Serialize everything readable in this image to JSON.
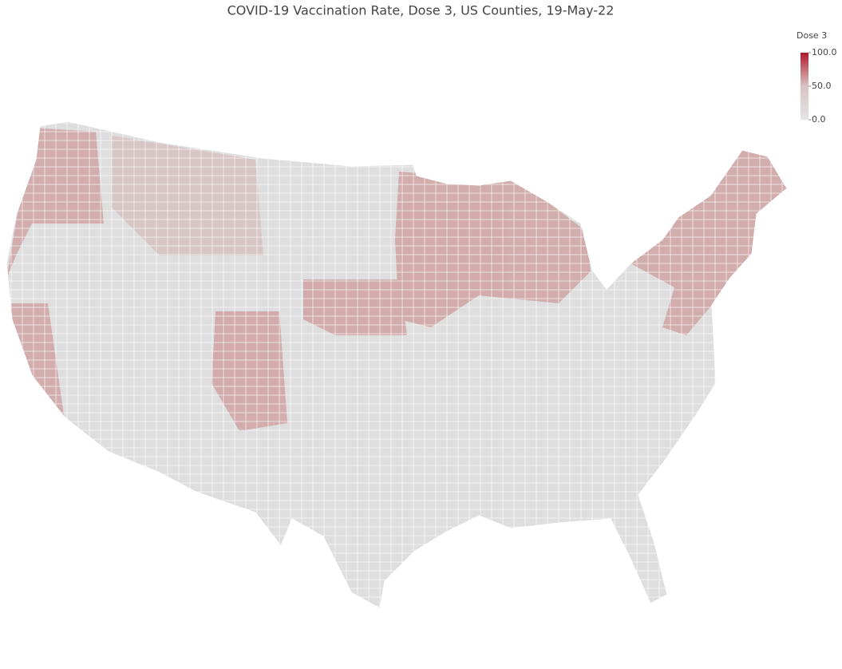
{
  "chart_data": {
    "type": "choropleth",
    "title": "COVID-19 Vaccination Rate, Dose 3, US Counties, 19-May-22",
    "colorbar_title": "Dose 3",
    "clim": [
      0,
      100
    ],
    "cticks": [
      {
        "value": 0,
        "label": "0.0"
      },
      {
        "value": 50,
        "label": "50.0"
      },
      {
        "value": 100,
        "label": "100.0"
      }
    ],
    "colorscale": [
      "#e4e4e4",
      "#d8c4c4",
      "#b2182b"
    ]
  }
}
